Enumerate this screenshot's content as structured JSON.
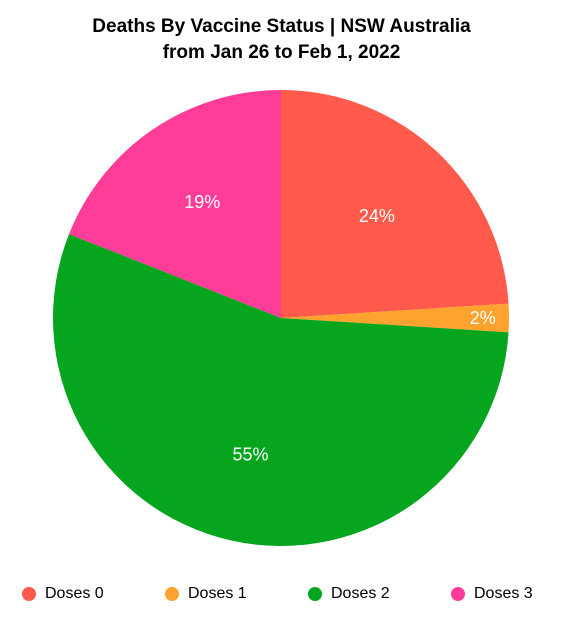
{
  "chart_data": {
    "type": "pie",
    "title": "Deaths By Vaccine Status | NSW Australia",
    "subtitle": "from Jan 26 to Feb 1, 2022",
    "legend_position": "bottom",
    "slices": [
      {
        "name": "Doses 0",
        "value": 24,
        "label": "24%",
        "color": "#ff5a4b"
      },
      {
        "name": "Doses 1",
        "value": 2,
        "label": "2%",
        "color": "#ffa22e"
      },
      {
        "name": "Doses 2",
        "value": 55,
        "label": "55%",
        "color": "#05a51e"
      },
      {
        "name": "Doses 3",
        "value": 19,
        "label": "19%",
        "color": "#ff3d98"
      }
    ]
  }
}
